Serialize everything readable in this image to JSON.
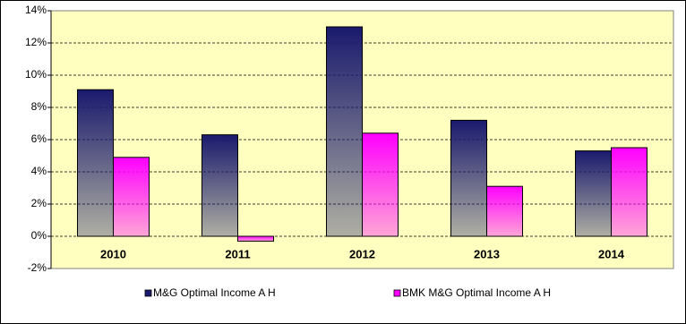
{
  "chart_data": {
    "type": "bar",
    "categories": [
      "2010",
      "2011",
      "2012",
      "2013",
      "2014"
    ],
    "series": [
      {
        "name": "M&G Optimal Income A H",
        "color": "#1a1a6e",
        "values": [
          9.1,
          6.3,
          13.0,
          7.2,
          5.3
        ]
      },
      {
        "name": "BMK M&G Optimal Income A H",
        "color": "#ff00ff",
        "values": [
          4.9,
          -0.3,
          6.4,
          3.1,
          5.5
        ]
      }
    ],
    "ylim": [
      -2,
      14
    ],
    "yticks": [
      {
        "value": -2,
        "label": "-2%"
      },
      {
        "value": 0,
        "label": "0%"
      },
      {
        "value": 2,
        "label": "2%"
      },
      {
        "value": 4,
        "label": "4%"
      },
      {
        "value": 6,
        "label": "6%"
      },
      {
        "value": 8,
        "label": "8%"
      },
      {
        "value": 10,
        "label": "10%"
      },
      {
        "value": 12,
        "label": "12%"
      },
      {
        "value": 14,
        "label": "14%"
      }
    ],
    "grid": true,
    "legend": "bottom"
  }
}
